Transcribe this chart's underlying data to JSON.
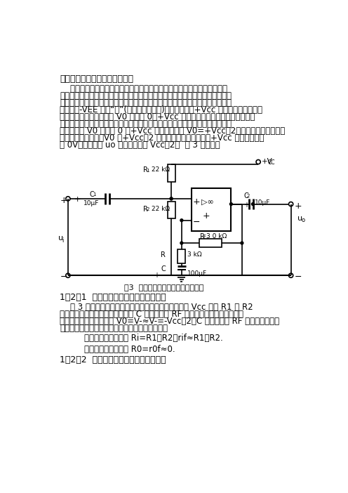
{
  "title": "使用单电源的运放交流放大电路",
  "para1_lines": [
    "    在采用电容耦合的交流放大电路中，静态时，当集成运放输出端的直流电",
    "压不为零时，由于输出耦合电容的隔直流作用，放大电路输出的电压仍为零。所",
    "以不需要集成运放满足零输入时零输出的要求。因此，集成运放可以采用单电源",
    "供电，其-VEE 端接“地”(即直流电源负极)，集成运放的+Vcc 端接直流电源正极。",
    "这时，运放输出端的电压 V0 只能在 0～+Vcc 之间变化。在单电源供电的运放交",
    "流放大电路中，为了不使放大后的交流信号产生失真，静态时，一般要将运放输",
    "出端的电压 V0 设置在 0 至+Vcc 值的中间，即 V0=+Vcc／2。这样能够得到较大的",
    "动态范围。动态时，V0 在+Vcc／2 值的基础上，上增至接近+Vcc 值，下降至接",
    "近 0V，输出电压 uo 的幅值近似为 Vcc／2。  图 3 请见原稿"
  ],
  "section1": "1．2．1  单电源同相输入式交流放大电路",
  "para2_lines": [
    "    图 3 是使用单电源的同相输入式交流放大电路。电源 Vcc 通过 R1 和 R2",
    "分压，使运放同相输入端电位由于 C 隔直流，使 RF 引入直流全负反馈。所以，",
    "静态时运放输出端的电压 V0=V-≈V-=-Vcc／2；C 通交流，使 RF 引入交流部分负",
    "反馈，是电压串联负反馈。放大电路的电压增益为"
  ],
  "formula1": "放大电路的输入电阻 Ri=R1／R2／rif≈R1／R2.",
  "formula2": "放大电路的输出电阻 R0=r0f≈0.",
  "section2": "1．2．2  单电源反相输入式交流放大电路",
  "fig_caption": "图3  单电源同相输入式交流放大电路",
  "bg_color": "#ffffff"
}
